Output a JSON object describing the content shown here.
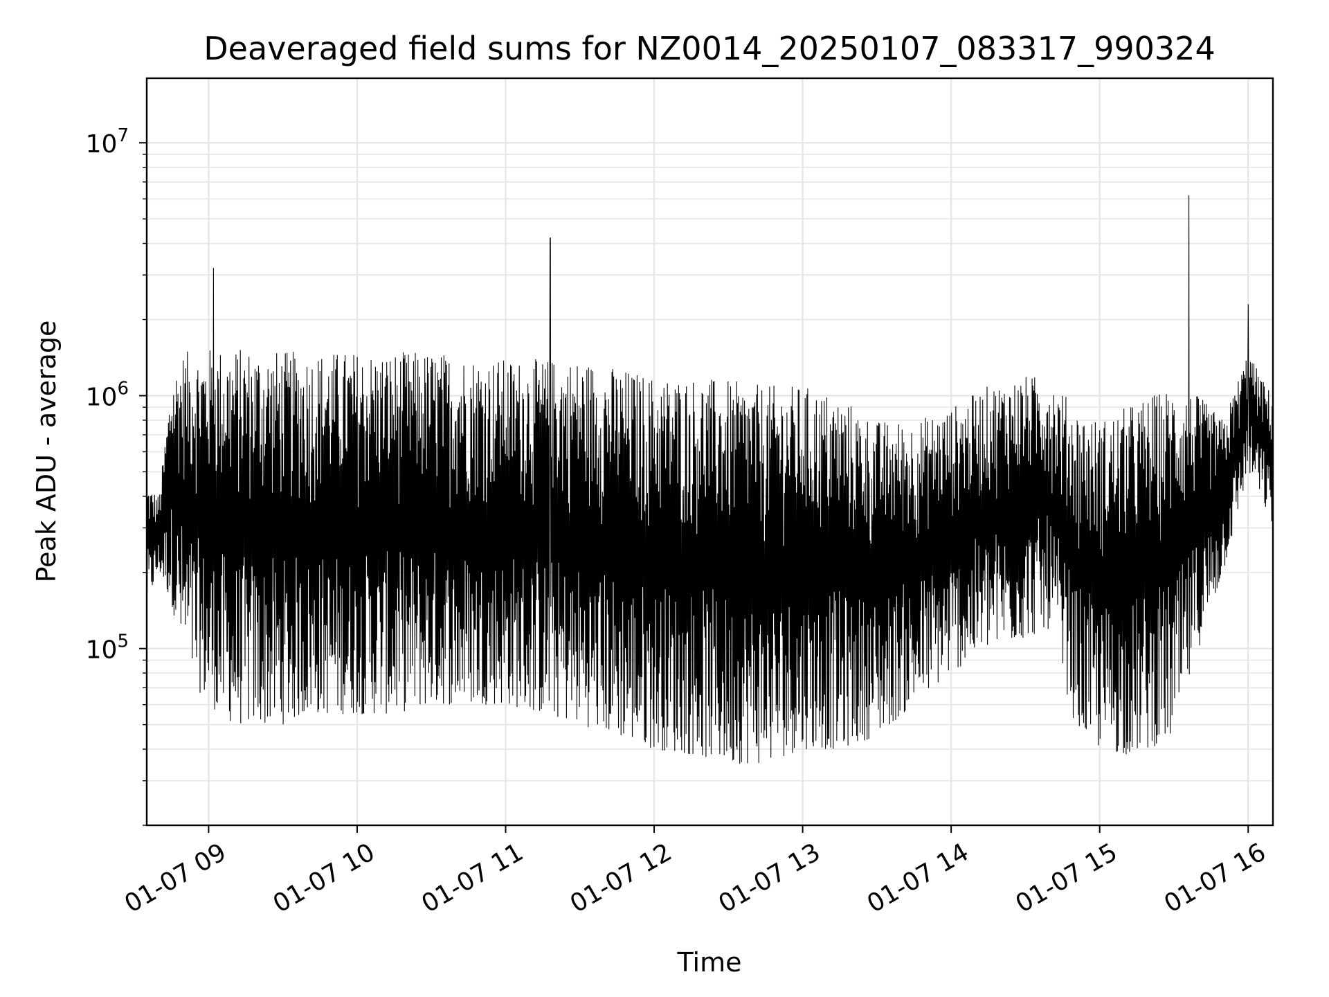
{
  "chart_data": {
    "type": "line",
    "title": "Deaveraged field sums for NZ0014_20250107_083317_990324",
    "xlabel": "Time",
    "ylabel": "Peak ADU - average",
    "y_scale": "log",
    "x_range": [
      "01-07 08:35",
      "01-07 16:10"
    ],
    "ylim": [
      20000,
      18000000
    ],
    "grid": true,
    "line_color": "#000000",
    "grid_color": "#e5e5e5",
    "x_ticks": [
      {
        "time": "01-07 09:00",
        "label": "01-07 09"
      },
      {
        "time": "01-07 10:00",
        "label": "01-07 10"
      },
      {
        "time": "01-07 11:00",
        "label": "01-07 11"
      },
      {
        "time": "01-07 12:00",
        "label": "01-07 12"
      },
      {
        "time": "01-07 13:00",
        "label": "01-07 13"
      },
      {
        "time": "01-07 14:00",
        "label": "01-07 14"
      },
      {
        "time": "01-07 15:00",
        "label": "01-07 15"
      },
      {
        "time": "01-07 16:00",
        "label": "01-07 16"
      }
    ],
    "y_ticks": [
      {
        "value": 100000,
        "base": "10",
        "exp": "5"
      },
      {
        "value": 1000000,
        "base": "10",
        "exp": "6"
      },
      {
        "value": 10000000,
        "base": "10",
        "exp": "7"
      }
    ],
    "series": [
      {
        "note_envelope": "dense oscillating signal; values are approximate upper/lower envelope and spikes",
        "x": [
          "01-07 08:35",
          "01-07 08:40",
          "01-07 08:45",
          "01-07 08:50",
          "01-07 08:55",
          "01-07 09:00",
          "01-07 09:10",
          "01-07 09:20",
          "01-07 09:30",
          "01-07 09:40",
          "01-07 09:50",
          "01-07 10:00",
          "01-07 10:15",
          "01-07 10:30",
          "01-07 10:45",
          "01-07 11:00",
          "01-07 11:15",
          "01-07 11:30",
          "01-07 11:45",
          "01-07 12:00",
          "01-07 12:15",
          "01-07 12:30",
          "01-07 12:45",
          "01-07 13:00",
          "01-07 13:15",
          "01-07 13:30",
          "01-07 13:45",
          "01-07 14:00",
          "01-07 14:15",
          "01-07 14:30",
          "01-07 14:40",
          "01-07 14:50",
          "01-07 15:00",
          "01-07 15:10",
          "01-07 15:20",
          "01-07 15:30",
          "01-07 15:40",
          "01-07 15:50",
          "01-07 16:00",
          "01-07 16:05",
          "01-07 16:10"
        ],
        "upper": [
          450000,
          400000,
          1200000,
          1500000,
          1500000,
          1550000,
          1550000,
          1550000,
          1500000,
          1500000,
          1500000,
          1500000,
          1500000,
          1500000,
          1450000,
          1400000,
          1400000,
          1400000,
          1300000,
          1200000,
          1200000,
          1150000,
          1100000,
          1100000,
          1000000,
          800000,
          800000,
          900000,
          1100000,
          1200000,
          1200000,
          900000,
          800000,
          900000,
          1000000,
          1100000,
          1000000,
          800000,
          1500000,
          1200000,
          1000000
        ],
        "lower": [
          150000,
          200000,
          150000,
          90000,
          70000,
          60000,
          50000,
          50000,
          50000,
          55000,
          55000,
          55000,
          55000,
          60000,
          60000,
          60000,
          55000,
          50000,
          45000,
          40000,
          38000,
          35000,
          35000,
          40000,
          40000,
          45000,
          60000,
          80000,
          100000,
          110000,
          120000,
          50000,
          40000,
          38000,
          40000,
          45000,
          100000,
          200000,
          500000,
          400000,
          300000
        ]
      }
    ],
    "spikes": [
      {
        "time": "01-07 09:02",
        "value": 3200000
      },
      {
        "time": "01-07 11:18",
        "value": 4200000
      },
      {
        "time": "01-07 15:36",
        "value": 6200000
      },
      {
        "time": "01-07 16:00",
        "value": 2300000
      }
    ]
  }
}
